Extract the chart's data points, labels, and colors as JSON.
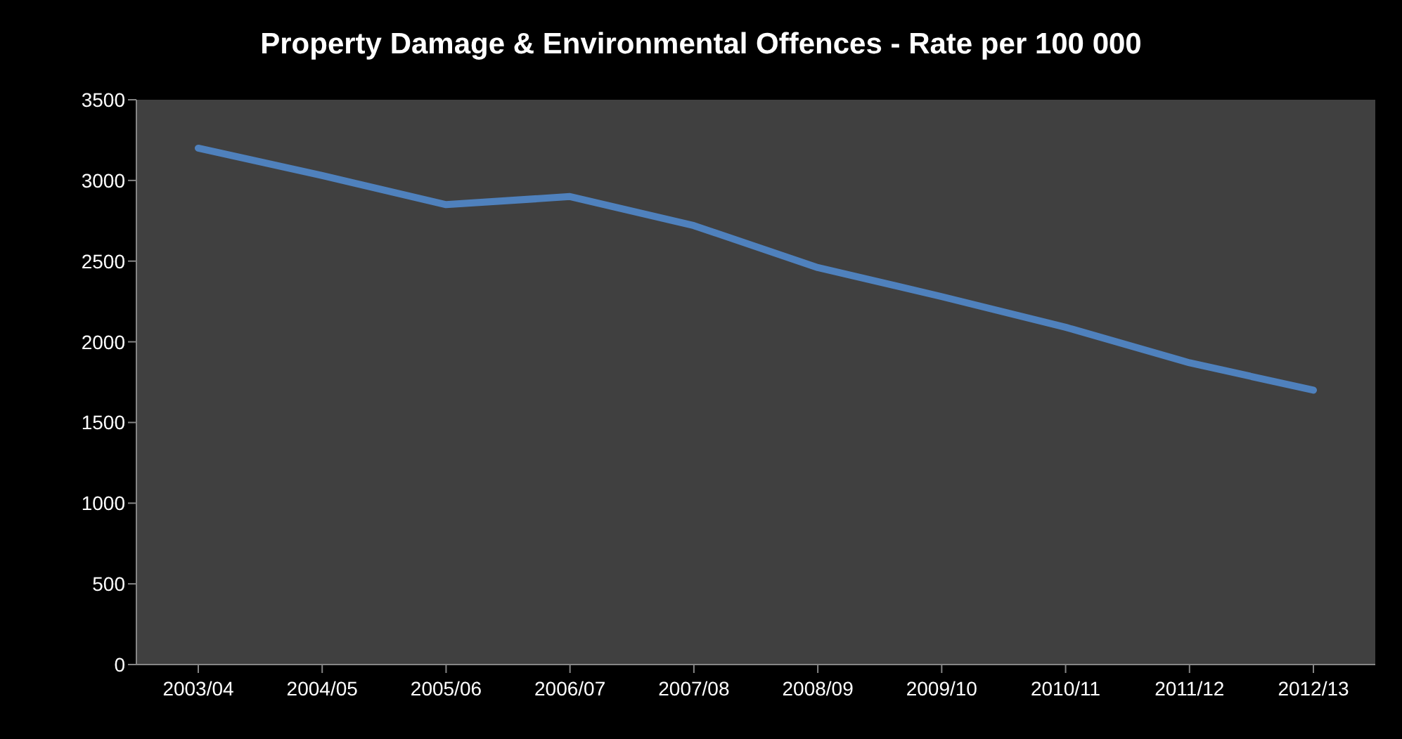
{
  "chart_data": {
    "type": "line",
    "title": "Property Damage & Environmental Offences - Rate per 100 000",
    "categories": [
      "2003/04",
      "2004/05",
      "2005/06",
      "2006/07",
      "2007/08",
      "2008/09",
      "2009/10",
      "2010/11",
      "2011/12",
      "2012/13"
    ],
    "series": [
      {
        "color": "#4f81bd",
        "values": [
          3200,
          3030,
          2850,
          2900,
          2720,
          2460,
          2280,
          2090,
          1870,
          1700
        ]
      }
    ],
    "ylim": [
      0,
      3500
    ],
    "yticks": [
      0,
      500,
      1000,
      1500,
      2000,
      2500,
      3000,
      3500
    ],
    "grid": false,
    "marker": "none",
    "line_style": "solid"
  }
}
